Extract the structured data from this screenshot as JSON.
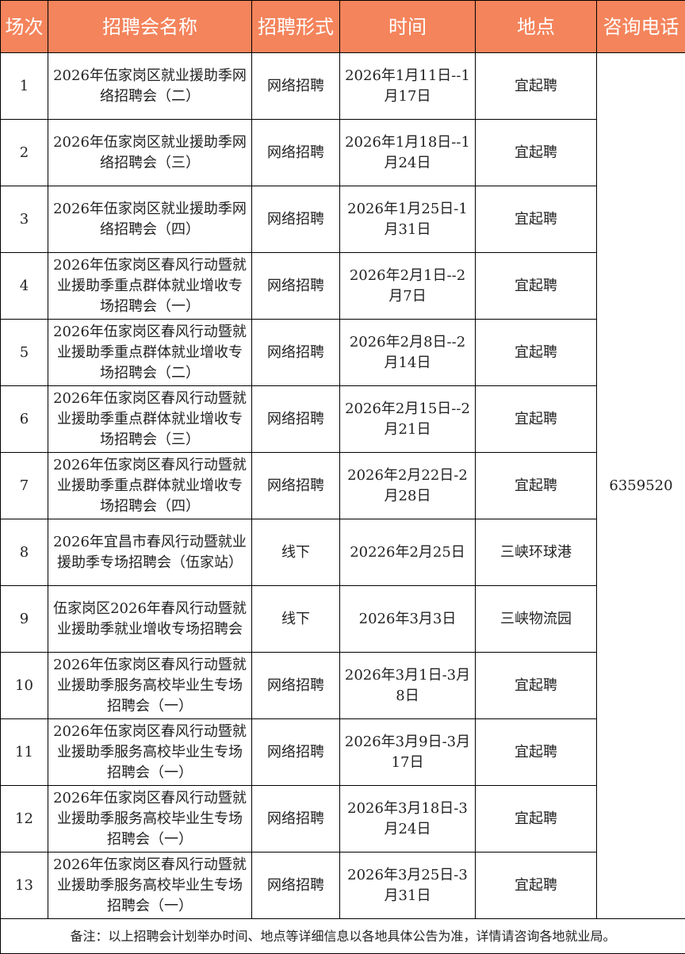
{
  "header": [
    "场次",
    "招聘会名称",
    "招聘形式",
    "时间",
    "地点",
    "咨询电话"
  ],
  "phone": "6359520",
  "rows": [
    {
      "no": "1",
      "name": "2026年伍家岗区就业援助季网络招聘会（二）",
      "form": "网络招聘",
      "time": "2026年1月11日--1月17日",
      "place": "宜起聘"
    },
    {
      "no": "2",
      "name": "2026年伍家岗区就业援助季网络招聘会（三）",
      "form": "网络招聘",
      "time": "2026年1月18日--1月24日",
      "place": "宜起聘"
    },
    {
      "no": "3",
      "name": "2026年伍家岗区就业援助季网络招聘会（四）",
      "form": "网络招聘",
      "time": "2026年1月25日-1月31日",
      "place": "宜起聘"
    },
    {
      "no": "4",
      "name": "2026年伍家岗区春风行动暨就业援助季重点群体就业增收专场招聘会（一）",
      "form": "网络招聘",
      "time": "2026年2月1日--2月7日",
      "place": "宜起聘"
    },
    {
      "no": "5",
      "name": "2026年伍家岗区春风行动暨就业援助季重点群体就业增收专场招聘会（二）",
      "form": "网络招聘",
      "time": "2026年2月8日--2月14日",
      "place": "宜起聘"
    },
    {
      "no": "6",
      "name": "2026年伍家岗区春风行动暨就业援助季重点群体就业增收专场招聘会（三）",
      "form": "网络招聘",
      "time": "2026年2月15日--2月21日",
      "place": "宜起聘"
    },
    {
      "no": "7",
      "name": "2026年伍家岗区春风行动暨就业援助季重点群体就业增收专场招聘会（四）",
      "form": "网络招聘",
      "time": "2026年2月22日-2月28日",
      "place": "宜起聘"
    },
    {
      "no": "8",
      "name": "2026年宜昌市春风行动暨就业援助季专场招聘会（伍家站）",
      "form": "线下",
      "time": "20226年2月25日",
      "place": "三峡环球港"
    },
    {
      "no": "9",
      "name": "伍家岗区2026年春风行动暨就业援助季就业增收专场招聘会",
      "form": "线下",
      "time": "2026年3月3日",
      "place": "三峡物流园"
    },
    {
      "no": "10",
      "name": "2026年伍家岗区春风行动暨就业援助季服务高校毕业生专场招聘会（一）",
      "form": "网络招聘",
      "time": "2026年3月1日-3月8日",
      "place": "宜起聘"
    },
    {
      "no": "11",
      "name": "2026年伍家岗区春风行动暨就业援助季服务高校毕业生专场招聘会（一）",
      "form": "网络招聘",
      "time": "2026年3月9日-3月17日",
      "place": "宜起聘"
    },
    {
      "no": "12",
      "name": "2026年伍家岗区春风行动暨就业援助季服务高校毕业生专场招聘会（一）",
      "form": "网络招聘",
      "time": "2026年3月18日-3月24日",
      "place": "宜起聘"
    },
    {
      "no": "13",
      "name": "2026年伍家岗区春风行动暨就业援助季服务高校毕业生专场招聘会（一）",
      "form": "网络招聘",
      "time": "2026年3月25日-3月31日",
      "place": "宜起聘"
    }
  ],
  "note": "备注：以上招聘会计划举办时间、地点等详细信息以各地具体公告为准，详情请咨询各地就业局。",
  "colors": {
    "header_bg": "#f4845c",
    "header_text": "#ffffff"
  }
}
